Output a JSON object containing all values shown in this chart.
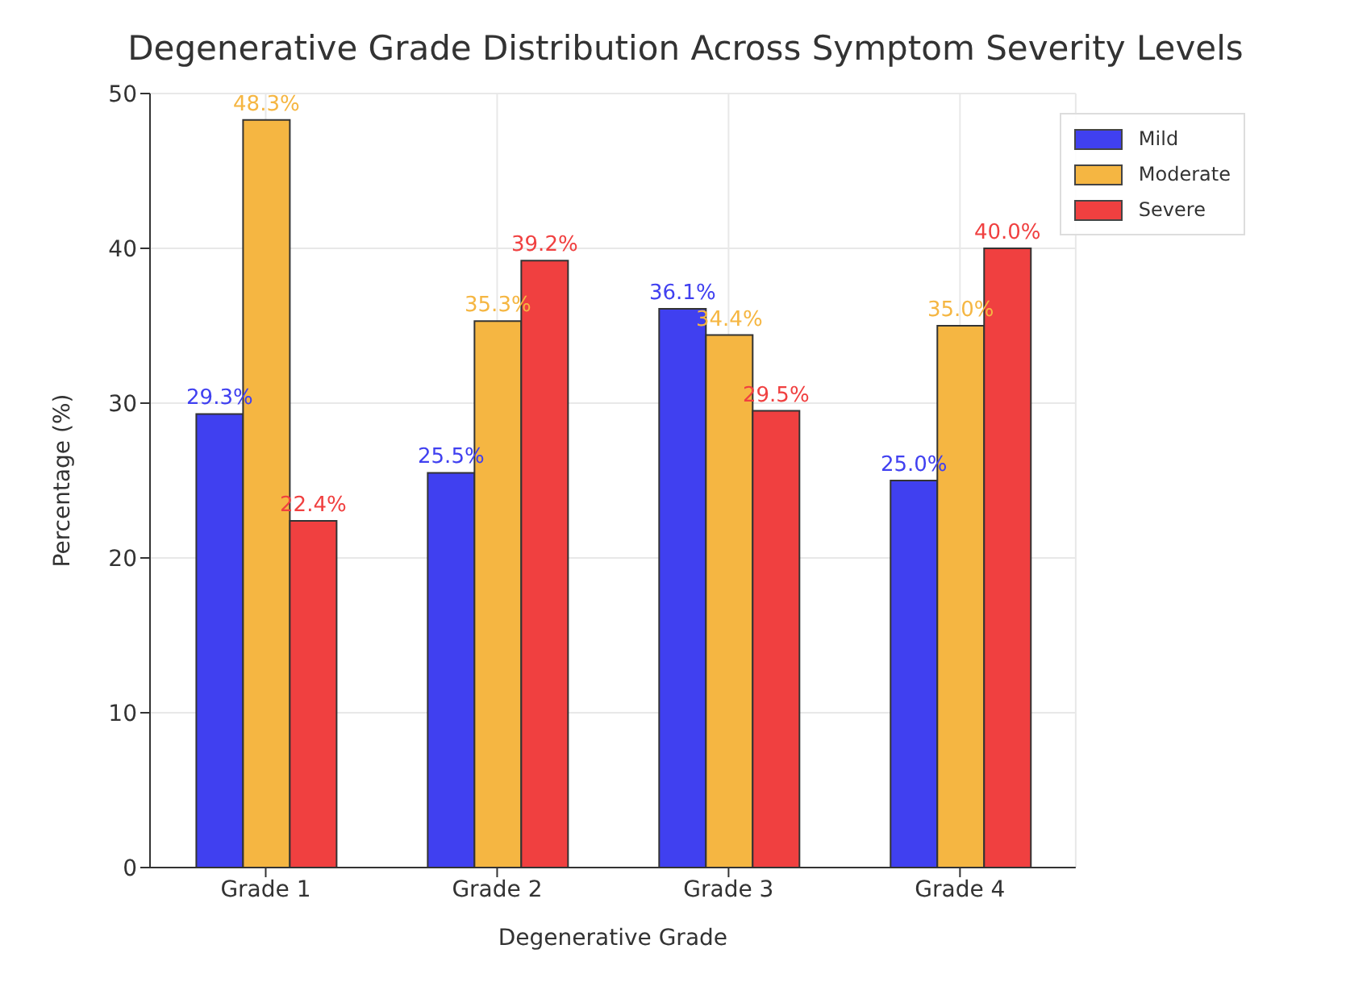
{
  "chart_data": {
    "type": "bar",
    "title": "Degenerative Grade Distribution Across Symptom Severity Levels",
    "xlabel": "Degenerative Grade",
    "ylabel": "Percentage (%)",
    "categories": [
      "Grade 1",
      "Grade 2",
      "Grade 3",
      "Grade 4"
    ],
    "series": [
      {
        "name": "Mild",
        "color": "#4040f0",
        "values": [
          29.3,
          25.5,
          36.1,
          25.0
        ],
        "value_labels": [
          "29.3%",
          "25.5%",
          "36.1%",
          "25.0%"
        ]
      },
      {
        "name": "Moderate",
        "color": "#f5b642",
        "values": [
          48.3,
          35.3,
          34.4,
          35.0
        ],
        "value_labels": [
          "48.3%",
          "35.3%",
          "34.4%",
          "35.0%"
        ]
      },
      {
        "name": "Severe",
        "color": "#f04040",
        "values": [
          22.4,
          39.2,
          29.5,
          40.0
        ],
        "value_labels": [
          "22.4%",
          "39.2%",
          "29.5%",
          "40.0%"
        ]
      }
    ],
    "ylim": [
      0,
      50
    ],
    "yticks": [
      0,
      10,
      20,
      30,
      40,
      50
    ],
    "grid": true,
    "legend": "top right"
  }
}
